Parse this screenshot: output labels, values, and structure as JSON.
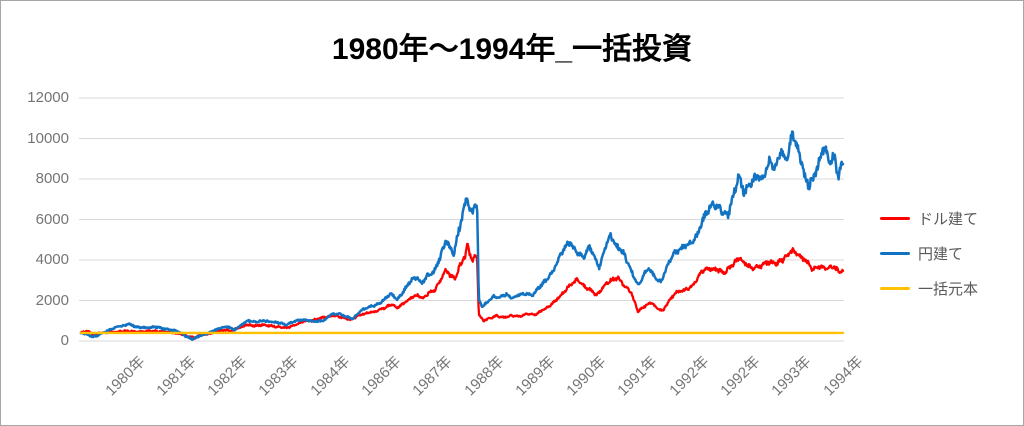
{
  "title": "1980年～1994年_一括投資",
  "colors": {
    "dollar": "#FF0000",
    "yen": "#1273C2",
    "principal": "#FFC000",
    "grid": "#D9D9D9",
    "axis_text": "#757575",
    "legend_text": "#595959",
    "border": "#A6A6A6",
    "title_text": "#000000"
  },
  "legend": {
    "position": "right",
    "items": [
      {
        "label": "ドル建て",
        "color": "#FF0000"
      },
      {
        "label": "円建て",
        "color": "#1273C2"
      },
      {
        "label": "一括元本",
        "color": "#FFC000"
      }
    ]
  },
  "chart_data": {
    "type": "line",
    "title": "1980年～1994年_一括投資",
    "grid": true,
    "legend_position": "right",
    "y_axis": {
      "min": 0,
      "max": 12000,
      "step": 2000,
      "tick_labels": [
        "0",
        "2000",
        "4000",
        "6000",
        "8000",
        "10000",
        "12000"
      ]
    },
    "x_axis": {
      "tick_labels": [
        "1980年",
        "1981年",
        "1982年",
        "1983年",
        "1984年",
        "1986年",
        "1987年",
        "1988年",
        "1989年",
        "1990年",
        "1991年",
        "1992年",
        "1992年",
        "1993年",
        "1994年"
      ],
      "note": "daily category axis 1980-1994; x given as fraction 0-1 of axis width"
    },
    "series": [
      {
        "name": "ドル建て",
        "color": "#FF0000",
        "points": [
          [
            0.0,
            400
          ],
          [
            0.008,
            500
          ],
          [
            0.016,
            300
          ],
          [
            0.026,
            400
          ],
          [
            0.042,
            450
          ],
          [
            0.059,
            500
          ],
          [
            0.076,
            450
          ],
          [
            0.092,
            500
          ],
          [
            0.109,
            450
          ],
          [
            0.121,
            400
          ],
          [
            0.131,
            350
          ],
          [
            0.142,
            200
          ],
          [
            0.15,
            150
          ],
          [
            0.157,
            300
          ],
          [
            0.168,
            350
          ],
          [
            0.178,
            450
          ],
          [
            0.189,
            550
          ],
          [
            0.197,
            500
          ],
          [
            0.207,
            650
          ],
          [
            0.218,
            800
          ],
          [
            0.228,
            750
          ],
          [
            0.239,
            800
          ],
          [
            0.249,
            750
          ],
          [
            0.26,
            700
          ],
          [
            0.27,
            650
          ],
          [
            0.281,
            800
          ],
          [
            0.291,
            950
          ],
          [
            0.302,
            1000
          ],
          [
            0.312,
            1100
          ],
          [
            0.323,
            1200
          ],
          [
            0.333,
            1250
          ],
          [
            0.344,
            1150
          ],
          [
            0.354,
            1050
          ],
          [
            0.365,
            1250
          ],
          [
            0.375,
            1400
          ],
          [
            0.386,
            1450
          ],
          [
            0.396,
            1600
          ],
          [
            0.407,
            1800
          ],
          [
            0.416,
            1650
          ],
          [
            0.425,
            1900
          ],
          [
            0.434,
            2150
          ],
          [
            0.442,
            2250
          ],
          [
            0.449,
            2100
          ],
          [
            0.457,
            2400
          ],
          [
            0.465,
            2550
          ],
          [
            0.472,
            3000
          ],
          [
            0.479,
            3500
          ],
          [
            0.484,
            3250
          ],
          [
            0.491,
            3100
          ],
          [
            0.497,
            3700
          ],
          [
            0.504,
            4200
          ],
          [
            0.507,
            4700
          ],
          [
            0.51,
            4300
          ],
          [
            0.514,
            4000
          ],
          [
            0.518,
            4200
          ],
          [
            0.52,
            4000
          ],
          [
            0.522,
            1300
          ],
          [
            0.528,
            1000
          ],
          [
            0.535,
            1100
          ],
          [
            0.545,
            1250
          ],
          [
            0.554,
            1150
          ],
          [
            0.564,
            1250
          ],
          [
            0.575,
            1200
          ],
          [
            0.585,
            1350
          ],
          [
            0.596,
            1300
          ],
          [
            0.605,
            1500
          ],
          [
            0.614,
            1700
          ],
          [
            0.623,
            2000
          ],
          [
            0.633,
            2400
          ],
          [
            0.643,
            2800
          ],
          [
            0.652,
            3050
          ],
          [
            0.661,
            2700
          ],
          [
            0.669,
            2500
          ],
          [
            0.677,
            2250
          ],
          [
            0.686,
            2700
          ],
          [
            0.695,
            3000
          ],
          [
            0.705,
            3100
          ],
          [
            0.714,
            2700
          ],
          [
            0.722,
            2400
          ],
          [
            0.731,
            1450
          ],
          [
            0.739,
            1700
          ],
          [
            0.748,
            1900
          ],
          [
            0.757,
            1600
          ],
          [
            0.764,
            1500
          ],
          [
            0.772,
            2000
          ],
          [
            0.781,
            2400
          ],
          [
            0.791,
            2500
          ],
          [
            0.802,
            2700
          ],
          [
            0.814,
            3400
          ],
          [
            0.824,
            3600
          ],
          [
            0.835,
            3500
          ],
          [
            0.845,
            3400
          ],
          [
            0.854,
            3700
          ],
          [
            0.863,
            4100
          ],
          [
            0.873,
            3800
          ],
          [
            0.882,
            3600
          ],
          [
            0.892,
            3700
          ],
          [
            0.903,
            3900
          ],
          [
            0.913,
            3800
          ],
          [
            0.924,
            4100
          ],
          [
            0.934,
            4500
          ],
          [
            0.943,
            4200
          ],
          [
            0.953,
            3900
          ],
          [
            0.96,
            3500
          ],
          [
            0.968,
            3700
          ],
          [
            0.977,
            3600
          ],
          [
            0.987,
            3700
          ],
          [
            0.994,
            3450
          ],
          [
            1.0,
            3500
          ]
        ]
      },
      {
        "name": "円建て",
        "color": "#1273C2",
        "points": [
          [
            0.0,
            400
          ],
          [
            0.007,
            350
          ],
          [
            0.016,
            200
          ],
          [
            0.026,
            350
          ],
          [
            0.039,
            600
          ],
          [
            0.055,
            750
          ],
          [
            0.063,
            850
          ],
          [
            0.072,
            700
          ],
          [
            0.085,
            650
          ],
          [
            0.098,
            700
          ],
          [
            0.109,
            600
          ],
          [
            0.118,
            550
          ],
          [
            0.129,
            450
          ],
          [
            0.139,
            200
          ],
          [
            0.147,
            100
          ],
          [
            0.155,
            250
          ],
          [
            0.164,
            350
          ],
          [
            0.173,
            500
          ],
          [
            0.184,
            650
          ],
          [
            0.194,
            700
          ],
          [
            0.201,
            550
          ],
          [
            0.21,
            800
          ],
          [
            0.22,
            1000
          ],
          [
            0.23,
            950
          ],
          [
            0.24,
            1000
          ],
          [
            0.249,
            950
          ],
          [
            0.26,
            900
          ],
          [
            0.269,
            800
          ],
          [
            0.28,
            950
          ],
          [
            0.289,
            1050
          ],
          [
            0.299,
            1000
          ],
          [
            0.308,
            950
          ],
          [
            0.318,
            1000
          ],
          [
            0.328,
            1300
          ],
          [
            0.339,
            1350
          ],
          [
            0.348,
            1200
          ],
          [
            0.357,
            1100
          ],
          [
            0.367,
            1500
          ],
          [
            0.378,
            1700
          ],
          [
            0.387,
            1750
          ],
          [
            0.396,
            2000
          ],
          [
            0.407,
            2350
          ],
          [
            0.415,
            2050
          ],
          [
            0.424,
            2500
          ],
          [
            0.433,
            3000
          ],
          [
            0.441,
            3150
          ],
          [
            0.447,
            2850
          ],
          [
            0.455,
            3250
          ],
          [
            0.463,
            3400
          ],
          [
            0.472,
            4200
          ],
          [
            0.479,
            5000
          ],
          [
            0.484,
            4600
          ],
          [
            0.489,
            4300
          ],
          [
            0.496,
            5500
          ],
          [
            0.503,
            6500
          ],
          [
            0.507,
            7200
          ],
          [
            0.51,
            6600
          ],
          [
            0.514,
            6300
          ],
          [
            0.517,
            6700
          ],
          [
            0.52,
            6500
          ],
          [
            0.522,
            2100
          ],
          [
            0.526,
            1700
          ],
          [
            0.533,
            1900
          ],
          [
            0.541,
            2200
          ],
          [
            0.549,
            2150
          ],
          [
            0.558,
            2300
          ],
          [
            0.567,
            2100
          ],
          [
            0.575,
            2300
          ],
          [
            0.584,
            2350
          ],
          [
            0.592,
            2250
          ],
          [
            0.601,
            2650
          ],
          [
            0.61,
            3000
          ],
          [
            0.619,
            3400
          ],
          [
            0.63,
            4300
          ],
          [
            0.64,
            4900
          ],
          [
            0.65,
            4400
          ],
          [
            0.659,
            4100
          ],
          [
            0.667,
            4700
          ],
          [
            0.674,
            4100
          ],
          [
            0.68,
            3600
          ],
          [
            0.688,
            4600
          ],
          [
            0.695,
            5200
          ],
          [
            0.703,
            4700
          ],
          [
            0.711,
            4400
          ],
          [
            0.722,
            3500
          ],
          [
            0.731,
            2750
          ],
          [
            0.739,
            3300
          ],
          [
            0.745,
            3600
          ],
          [
            0.754,
            3100
          ],
          [
            0.761,
            2900
          ],
          [
            0.769,
            3700
          ],
          [
            0.777,
            4300
          ],
          [
            0.787,
            4550
          ],
          [
            0.798,
            4800
          ],
          [
            0.808,
            5200
          ],
          [
            0.82,
            6300
          ],
          [
            0.829,
            6800
          ],
          [
            0.84,
            6500
          ],
          [
            0.848,
            6100
          ],
          [
            0.857,
            7300
          ],
          [
            0.863,
            8100
          ],
          [
            0.871,
            7300
          ],
          [
            0.879,
            7800
          ],
          [
            0.887,
            8200
          ],
          [
            0.895,
            8000
          ],
          [
            0.903,
            8800
          ],
          [
            0.911,
            8600
          ],
          [
            0.919,
            9300
          ],
          [
            0.925,
            8900
          ],
          [
            0.934,
            10200
          ],
          [
            0.942,
            9300
          ],
          [
            0.95,
            8100
          ],
          [
            0.955,
            7700
          ],
          [
            0.962,
            8100
          ],
          [
            0.968,
            8800
          ],
          [
            0.975,
            9650
          ],
          [
            0.981,
            8900
          ],
          [
            0.988,
            9100
          ],
          [
            0.994,
            8200
          ],
          [
            1.0,
            8700
          ]
        ]
      },
      {
        "name": "一括元本",
        "color": "#FFC000",
        "points": [
          [
            0.0,
            400
          ],
          [
            1.0,
            400
          ]
        ]
      }
    ]
  }
}
